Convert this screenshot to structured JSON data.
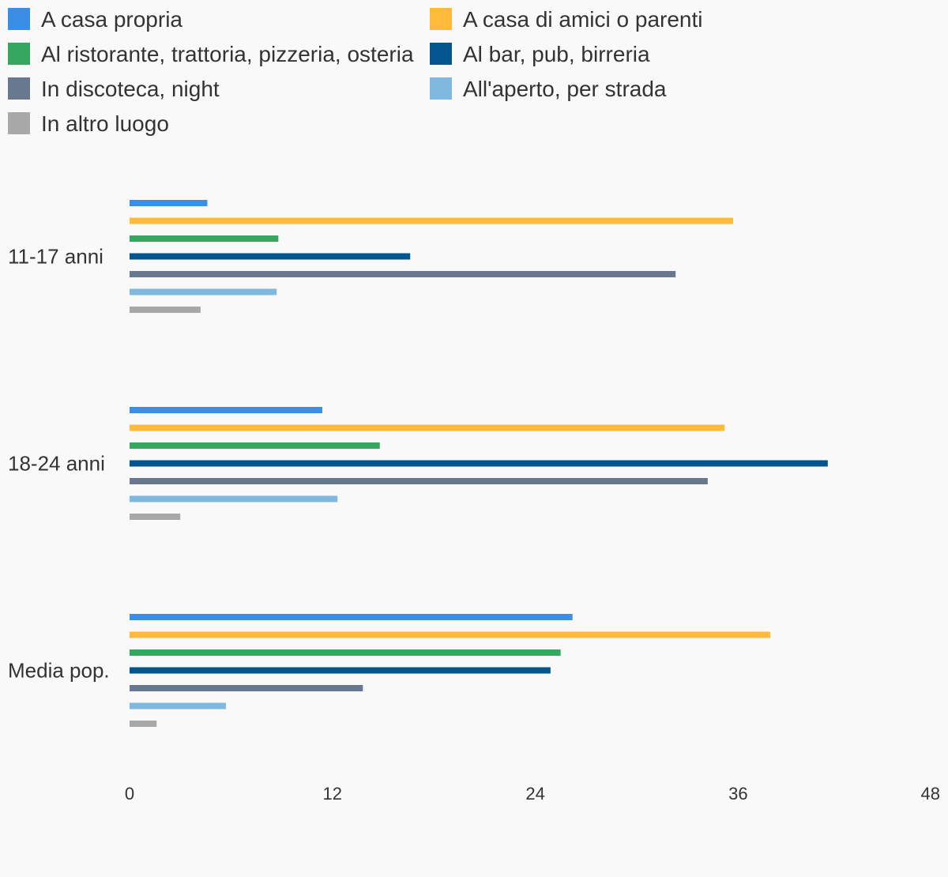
{
  "chart_data": {
    "type": "bar",
    "orientation": "horizontal",
    "categories": [
      "11-17 anni",
      "18-24 anni",
      "Media pop."
    ],
    "series": [
      {
        "name": "A casa propria",
        "color": "#3a8ee6",
        "values": [
          4.6,
          11.4,
          26.2
        ]
      },
      {
        "name": "A casa di amici o parenti",
        "color": "#ffb93b",
        "values": [
          35.7,
          35.2,
          37.9
        ]
      },
      {
        "name": "Al ristorante, trattoria, pizzeria, osteria",
        "color": "#35a75e",
        "values": [
          8.8,
          14.8,
          25.5
        ]
      },
      {
        "name": "Al bar, pub, birreria",
        "color": "#02558d",
        "values": [
          16.6,
          41.3,
          24.9
        ]
      },
      {
        "name": "In discoteca, night",
        "color": "#68798f",
        "values": [
          32.3,
          34.2,
          13.8
        ]
      },
      {
        "name": "All'aperto, per strada",
        "color": "#80b9e0",
        "values": [
          8.7,
          12.3,
          5.7
        ]
      },
      {
        "name": "In altro luogo",
        "color": "#a8a8a8",
        "values": [
          4.2,
          3.0,
          1.6
        ]
      }
    ],
    "x_ticks": [
      "0",
      "12",
      "24",
      "36",
      "48"
    ],
    "xlim": [
      0,
      48
    ],
    "grid": false,
    "legend_position": "top"
  }
}
